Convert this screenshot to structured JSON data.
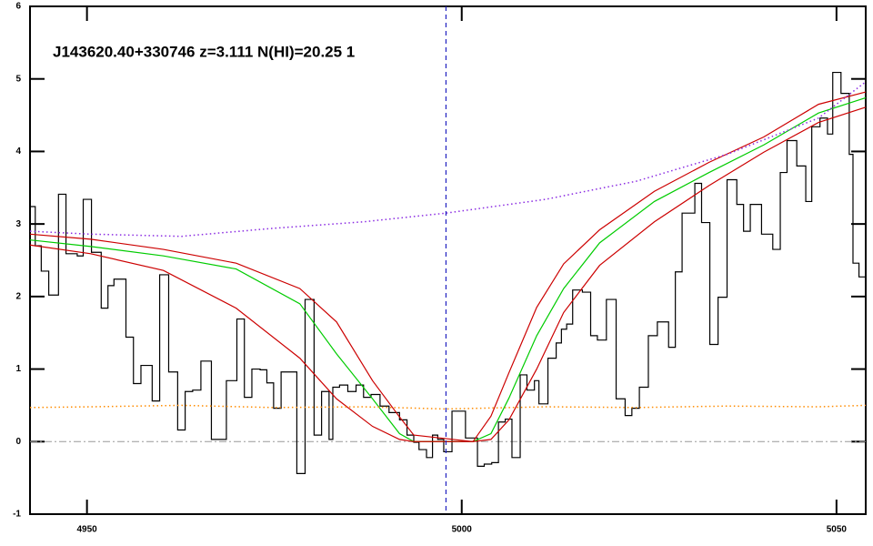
{
  "chart_data": {
    "type": "line",
    "annotation": "J143620.40+330746 z=3.111 N(HI)=20.25 1",
    "xlim": [
      4942.4,
      5053.9
    ],
    "ylim": [
      -1,
      6
    ],
    "xticks": [
      4950,
      5000,
      5050
    ],
    "yticks": [
      -1,
      0,
      1,
      2,
      3,
      4,
      5,
      6
    ],
    "vline": {
      "x": 4997.9,
      "color": "#2020c0"
    },
    "hline": {
      "y": 0,
      "color": "#999999"
    },
    "series": [
      {
        "color": "#000000",
        "style": "step",
        "x": [
          4942.4,
          4943.1,
          4943.9,
          4944.9,
          4946.2,
          4947.2,
          4948.7,
          4949.5,
          4950.6,
          4951.9,
          4952.8,
          4953.6,
          4955.2,
          4956.2,
          4957.2,
          4958.7,
          4959.7,
          4960.9,
          4962.1,
          4963.1,
          4964.1,
          4965.2,
          4966.6,
          4968.6,
          4970.0,
          4971.0,
          4972.0,
          4973.1,
          4974.0,
          4974.9,
          4975.9,
          4978.0,
          4979.1,
          4980.3,
          4981.3,
          4982.3,
          4982.8,
          4983.7,
          4984.8,
          4985.9,
          4986.9,
          4987.9,
          4989.1,
          4990.3,
          4991.7,
          4992.7,
          4993.6,
          4994.3,
          4995.3,
          4996.1,
          4996.8,
          4997.6,
          4998.7,
          5000.5,
          5002.1,
          5003.0,
          5004.0,
          5004.9,
          5005.8,
          5006.7,
          5007.8,
          5008.7,
          5009.7,
          5010.3,
          5011.5,
          5012.6,
          5013.3,
          5014.0,
          5014.8,
          5016.1,
          5017.2,
          5018.1,
          5019.3,
          5020.6,
          5021.8,
          5022.7,
          5023.7,
          5024.9,
          5026.1,
          5027.6,
          5028.5,
          5029.4,
          5030.1,
          5031.1,
          5032.0,
          5033.1,
          5034.2,
          5035.4,
          5036.7,
          5037.6,
          5038.5,
          5040.0,
          5041.5,
          5042.5,
          5043.4,
          5044.7,
          5045.9,
          5046.7,
          5047.8,
          5048.8,
          5049.5,
          5050.6,
          5051.7,
          5052.2,
          5053.0
        ],
        "values": [
          3.24,
          2.7,
          2.35,
          2.02,
          3.41,
          2.59,
          2.56,
          3.34,
          2.61,
          1.84,
          2.15,
          2.24,
          1.44,
          0.8,
          1.05,
          0.56,
          2.3,
          0.96,
          0.16,
          0.69,
          0.71,
          1.11,
          0.03,
          0.84,
          1.69,
          0.61,
          1.0,
          0.99,
          0.81,
          0.46,
          0.96,
          -0.44,
          1.96,
          0.09,
          0.69,
          0.03,
          0.75,
          0.78,
          0.69,
          0.78,
          0.61,
          0.65,
          0.49,
          0.4,
          0.3,
          0.09,
          -0.01,
          -0.11,
          -0.22,
          0.09,
          0.03,
          -0.14,
          0.42,
          0.05,
          -0.34,
          -0.31,
          -0.29,
          0.27,
          0.31,
          -0.22,
          0.92,
          0.71,
          0.84,
          0.52,
          1.15,
          1.36,
          1.55,
          1.62,
          2.09,
          2.06,
          1.46,
          1.4,
          1.96,
          0.59,
          0.36,
          0.46,
          0.75,
          1.46,
          1.65,
          1.3,
          2.34,
          3.15,
          3.15,
          3.56,
          3.02,
          1.34,
          1.99,
          3.61,
          3.27,
          2.9,
          3.27,
          2.86,
          2.65,
          3.71,
          4.15,
          3.8,
          3.31,
          4.34,
          4.46,
          4.24,
          5.09,
          4.8,
          3.96,
          2.46,
          2.27
        ]
      },
      {
        "color": "#00cc00",
        "style": "solid",
        "x": [
          4942.4,
          4950.5,
          4960.2,
          4969.9,
          4978.4,
          4983.3,
          4988.1,
          4991.7,
          4993.6,
          5001.5,
          5003.9,
          5006.3,
          5010.0,
          5013.6,
          5018.4,
          5025.7,
          5033.0,
          5040.3,
          5047.6,
          5053.9
        ],
        "values": [
          2.78,
          2.69,
          2.56,
          2.38,
          1.9,
          1.21,
          0.59,
          0.11,
          0.0,
          0.0,
          0.11,
          0.6,
          1.46,
          2.11,
          2.74,
          3.31,
          3.71,
          4.09,
          4.53,
          4.74
        ]
      },
      {
        "color": "#cc0000",
        "style": "solid",
        "x": [
          4942.4,
          4950.5,
          4960.2,
          4969.9,
          4978.4,
          4983.3,
          4988.1,
          4991.7,
          4993.6,
          5001.5,
          5003.9,
          5006.3,
          5010.0,
          5013.6,
          5018.4,
          5025.7,
          5033.0,
          5040.3,
          5047.6,
          5053.9
        ],
        "values": [
          2.86,
          2.79,
          2.65,
          2.46,
          2.11,
          1.65,
          0.84,
          0.34,
          0.09,
          0.0,
          0.35,
          0.95,
          1.85,
          2.45,
          2.92,
          3.45,
          3.85,
          4.2,
          4.65,
          4.82
        ]
      },
      {
        "color": "#cc0000",
        "style": "solid",
        "x": [
          4942.4,
          4950.5,
          4960.2,
          4969.9,
          4978.4,
          4983.3,
          4988.1,
          4991.7,
          4993.6,
          5001.5,
          5003.9,
          5006.3,
          5010.0,
          5013.6,
          5018.4,
          5025.7,
          5033.0,
          5040.3,
          5047.6,
          5053.9
        ],
        "values": [
          2.71,
          2.59,
          2.36,
          1.84,
          1.15,
          0.59,
          0.21,
          0.03,
          0.0,
          0.0,
          0.03,
          0.3,
          1.0,
          1.78,
          2.43,
          3.03,
          3.53,
          3.99,
          4.4,
          4.61
        ]
      },
      {
        "color": "#8a2be2",
        "style": "dotted",
        "x": [
          4942.4,
          4950.5,
          4962.6,
          4974.8,
          4986.9,
          4997.9,
          5011.2,
          5023.3,
          5035.4,
          5047.6,
          5053.9
        ],
        "values": [
          2.9,
          2.86,
          2.83,
          2.94,
          3.03,
          3.15,
          3.34,
          3.59,
          3.96,
          4.46,
          4.96
        ]
      },
      {
        "color": "#ff8c00",
        "style": "dotted",
        "x": [
          4942.4,
          4950.5,
          4962.6,
          4974.8,
          4986.9,
          4997.9,
          5011.2,
          5023.3,
          5035.4,
          5047.6,
          5053.9
        ],
        "values": [
          0.47,
          0.48,
          0.5,
          0.47,
          0.48,
          0.45,
          0.48,
          0.47,
          0.49,
          0.48,
          0.5
        ]
      }
    ]
  }
}
